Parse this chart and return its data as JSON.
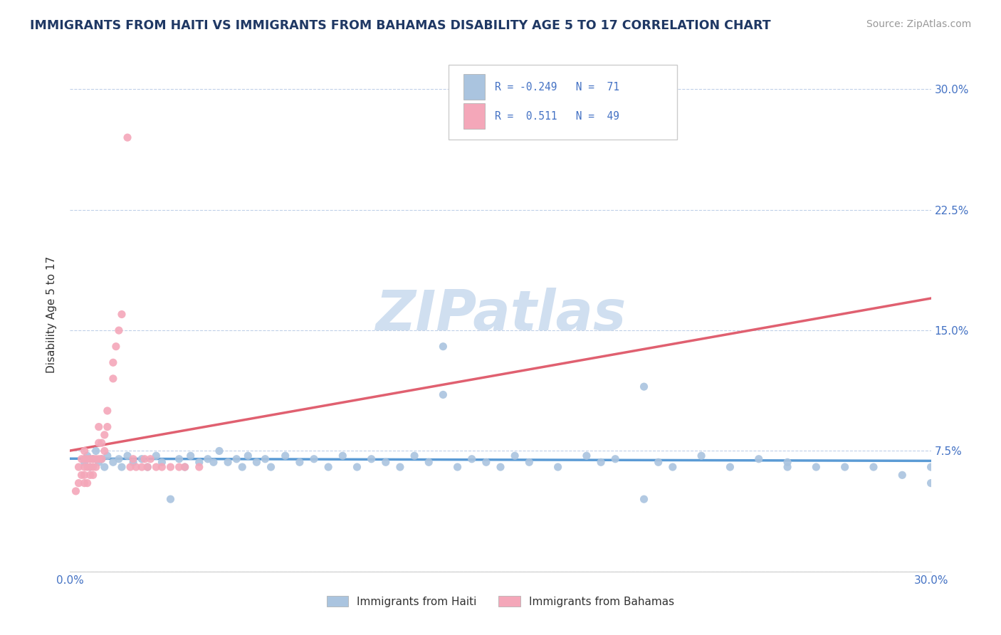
{
  "title": "IMMIGRANTS FROM HAITI VS IMMIGRANTS FROM BAHAMAS DISABILITY AGE 5 TO 17 CORRELATION CHART",
  "source": "Source: ZipAtlas.com",
  "ylabel": "Disability Age 5 to 17",
  "xmin": 0.0,
  "xmax": 0.3,
  "ymin": 0.0,
  "ymax": 0.32,
  "haiti_color": "#aac4df",
  "bahamas_color": "#f4a7b9",
  "haiti_line_color": "#5b9bd5",
  "bahamas_line_color": "#e06070",
  "legend_R_color": "#4472c4",
  "legend_text_color": "#333333",
  "watermark_color": "#d0dff0",
  "axis_color": "#4472c4",
  "title_color": "#1f3864",
  "background_color": "#ffffff",
  "grid_color": "#c0d0e8",
  "haiti_R": -0.249,
  "haiti_N": 71,
  "bahamas_R": 0.511,
  "bahamas_N": 49,
  "watermark": "ZIPatlas",
  "haiti_scatter_x": [
    0.005,
    0.006,
    0.007,
    0.008,
    0.009,
    0.01,
    0.011,
    0.012,
    0.013,
    0.015,
    0.017,
    0.018,
    0.02,
    0.022,
    0.025,
    0.027,
    0.03,
    0.032,
    0.035,
    0.038,
    0.04,
    0.042,
    0.045,
    0.048,
    0.05,
    0.052,
    0.055,
    0.058,
    0.06,
    0.062,
    0.065,
    0.068,
    0.07,
    0.075,
    0.08,
    0.085,
    0.09,
    0.095,
    0.1,
    0.105,
    0.11,
    0.115,
    0.12,
    0.125,
    0.13,
    0.135,
    0.14,
    0.145,
    0.15,
    0.155,
    0.16,
    0.17,
    0.18,
    0.185,
    0.19,
    0.2,
    0.205,
    0.21,
    0.22,
    0.23,
    0.24,
    0.25,
    0.26,
    0.27,
    0.28,
    0.29,
    0.3,
    0.3,
    0.13,
    0.2,
    0.25
  ],
  "haiti_scatter_y": [
    0.068,
    0.072,
    0.065,
    0.07,
    0.075,
    0.068,
    0.07,
    0.065,
    0.072,
    0.068,
    0.07,
    0.065,
    0.072,
    0.068,
    0.07,
    0.065,
    0.072,
    0.068,
    0.045,
    0.07,
    0.065,
    0.072,
    0.068,
    0.07,
    0.068,
    0.075,
    0.068,
    0.07,
    0.065,
    0.072,
    0.068,
    0.07,
    0.065,
    0.072,
    0.068,
    0.07,
    0.065,
    0.072,
    0.065,
    0.07,
    0.068,
    0.065,
    0.072,
    0.068,
    0.14,
    0.065,
    0.07,
    0.068,
    0.065,
    0.072,
    0.068,
    0.065,
    0.072,
    0.068,
    0.07,
    0.115,
    0.068,
    0.065,
    0.072,
    0.065,
    0.07,
    0.068,
    0.065,
    0.065,
    0.065,
    0.06,
    0.055,
    0.065,
    0.11,
    0.045,
    0.065
  ],
  "bahamas_scatter_x": [
    0.002,
    0.003,
    0.003,
    0.004,
    0.004,
    0.005,
    0.005,
    0.005,
    0.005,
    0.005,
    0.006,
    0.006,
    0.006,
    0.007,
    0.007,
    0.007,
    0.008,
    0.008,
    0.008,
    0.009,
    0.009,
    0.01,
    0.01,
    0.01,
    0.011,
    0.011,
    0.012,
    0.012,
    0.013,
    0.013,
    0.015,
    0.015,
    0.016,
    0.017,
    0.018,
    0.02,
    0.021,
    0.022,
    0.023,
    0.025,
    0.026,
    0.027,
    0.028,
    0.03,
    0.032,
    0.035,
    0.038,
    0.04,
    0.045
  ],
  "bahamas_scatter_y": [
    0.05,
    0.055,
    0.065,
    0.06,
    0.07,
    0.065,
    0.07,
    0.075,
    0.055,
    0.06,
    0.065,
    0.07,
    0.055,
    0.06,
    0.065,
    0.07,
    0.06,
    0.065,
    0.07,
    0.065,
    0.07,
    0.07,
    0.08,
    0.09,
    0.07,
    0.08,
    0.075,
    0.085,
    0.09,
    0.1,
    0.12,
    0.13,
    0.14,
    0.15,
    0.16,
    0.27,
    0.065,
    0.07,
    0.065,
    0.065,
    0.07,
    0.065,
    0.07,
    0.065,
    0.065,
    0.065,
    0.065,
    0.065,
    0.065
  ]
}
